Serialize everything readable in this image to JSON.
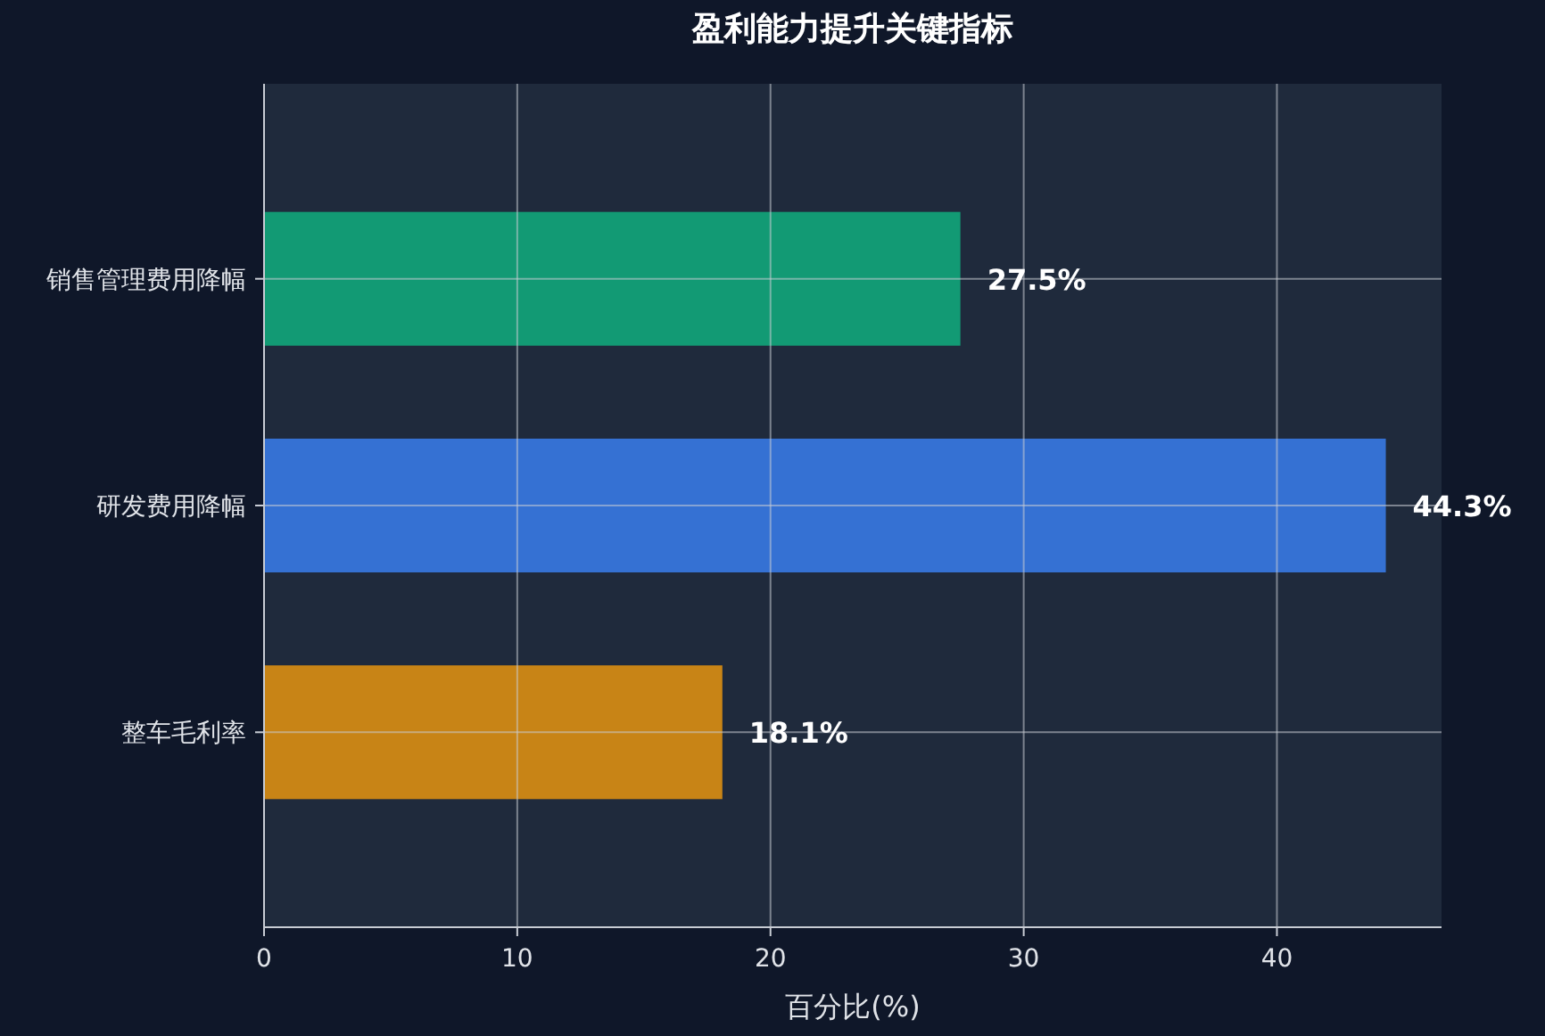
{
  "chart_data": {
    "type": "bar",
    "orientation": "horizontal",
    "title": "盈利能力提升关键指标",
    "xlabel": "百分比(%)",
    "categories": [
      "销售管理费用降幅",
      "研发费用降幅",
      "整车毛利率"
    ],
    "values": [
      27.5,
      44.3,
      18.1
    ],
    "colors": [
      "#129a74",
      "#3571d3",
      "#c88416"
    ],
    "value_labels": [
      "27.5%",
      "44.3%",
      "18.1%"
    ],
    "xlim": [
      0,
      46.5
    ],
    "xticks": [
      0,
      10,
      20,
      30,
      40
    ],
    "grid": true
  }
}
